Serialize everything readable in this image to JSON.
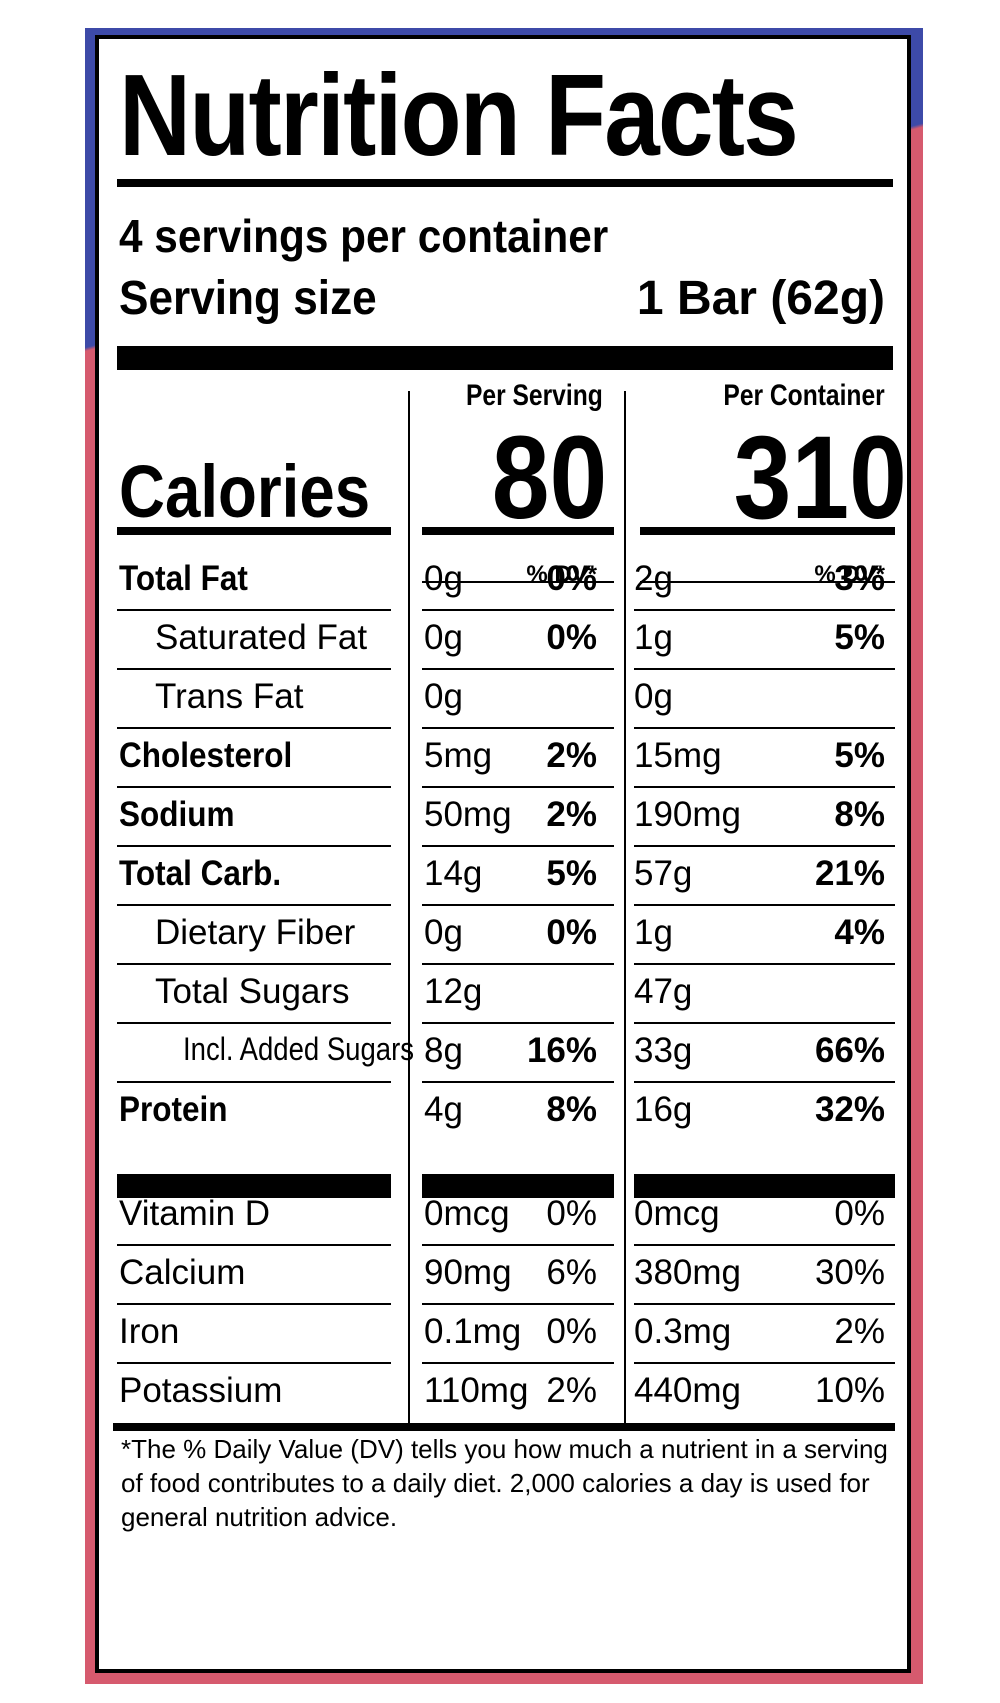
{
  "title": "Nutrition Facts",
  "servings_per_container": "4 servings per container",
  "serving_size": {
    "label": "Serving size",
    "value": "1 Bar (62g)"
  },
  "columns": {
    "per_serving": "Per Serving",
    "per_container": "Per Container"
  },
  "calories": {
    "label": "Calories",
    "per_serving": "80",
    "per_container": "310"
  },
  "dv_header": "% DV*",
  "nutrients": [
    {
      "label": "Total Fat",
      "style": "bold",
      "serving_amount": "0g",
      "serving_dv": "0%",
      "container_amount": "2g",
      "container_dv": "3%"
    },
    {
      "label": "Saturated Fat",
      "style": "indent",
      "serving_amount": "0g",
      "serving_dv": "0%",
      "container_amount": "1g",
      "container_dv": "5%"
    },
    {
      "label": "Trans Fat",
      "style": "indent",
      "serving_amount": "0g",
      "serving_dv": "",
      "container_amount": "0g",
      "container_dv": ""
    },
    {
      "label": "Cholesterol",
      "style": "bold",
      "serving_amount": "5mg",
      "serving_dv": "2%",
      "container_amount": "15mg",
      "container_dv": "5%"
    },
    {
      "label": "Sodium",
      "style": "bold",
      "serving_amount": "50mg",
      "serving_dv": "2%",
      "container_amount": "190mg",
      "container_dv": "8%"
    },
    {
      "label": "Total Carb.",
      "style": "bold",
      "serving_amount": "14g",
      "serving_dv": "5%",
      "container_amount": "57g",
      "container_dv": "21%"
    },
    {
      "label": "Dietary Fiber",
      "style": "indent",
      "serving_amount": "0g",
      "serving_dv": "0%",
      "container_amount": "1g",
      "container_dv": "4%"
    },
    {
      "label": "Total Sugars",
      "style": "indent",
      "serving_amount": "12g",
      "serving_dv": "",
      "container_amount": "47g",
      "container_dv": ""
    },
    {
      "label": "Incl. Added Sugars",
      "style": "indent2",
      "serving_amount": "8g",
      "serving_dv": "16%",
      "container_amount": "33g",
      "container_dv": "66%"
    },
    {
      "label": "Protein",
      "style": "bold",
      "serving_amount": "4g",
      "serving_dv": "8%",
      "container_amount": "16g",
      "container_dv": "32%"
    }
  ],
  "vitamins": [
    {
      "label": "Vitamin D",
      "serving_amount": "0mcg",
      "serving_dv": "0%",
      "container_amount": "0mcg",
      "container_dv": "0%"
    },
    {
      "label": "Calcium",
      "serving_amount": "90mg",
      "serving_dv": "6%",
      "container_amount": "380mg",
      "container_dv": "30%"
    },
    {
      "label": "Iron",
      "serving_amount": "0.1mg",
      "serving_dv": "0%",
      "container_amount": "0.3mg",
      "container_dv": "2%"
    },
    {
      "label": "Potassium",
      "serving_amount": "110mg",
      "serving_dv": "2%",
      "container_amount": "440mg",
      "container_dv": "10%"
    }
  ],
  "footnote": "*The % Daily Value (DV) tells you how much a nutrient in a serving of food contributes to a daily diet. 2,000 calories a day is used for general nutrition advice.",
  "colors": {
    "backdrop_top": "#3d4aa8",
    "backdrop_bottom": "#d65a6e",
    "ink": "#000000"
  }
}
